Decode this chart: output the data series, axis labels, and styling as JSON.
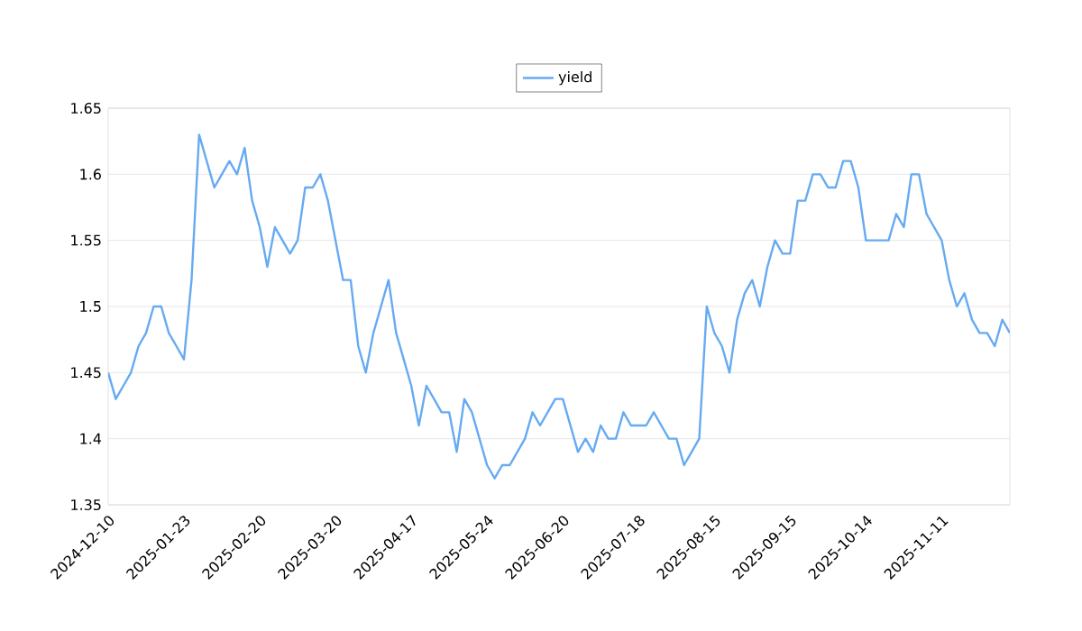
{
  "chart_data": {
    "type": "line",
    "categories": [
      "2024-12-10",
      null,
      null,
      null,
      null,
      null,
      null,
      null,
      null,
      null,
      "2025-01-23",
      null,
      null,
      null,
      null,
      null,
      null,
      null,
      null,
      null,
      "2025-02-20",
      null,
      null,
      null,
      null,
      null,
      null,
      null,
      null,
      null,
      "2025-03-20",
      null,
      null,
      null,
      null,
      null,
      null,
      null,
      null,
      null,
      "2025-04-17",
      null,
      null,
      null,
      null,
      null,
      null,
      null,
      null,
      null,
      "2025-05-24",
      null,
      null,
      null,
      null,
      null,
      null,
      null,
      null,
      null,
      "2025-06-20",
      null,
      null,
      null,
      null,
      null,
      null,
      null,
      null,
      null,
      "2025-07-18",
      null,
      null,
      null,
      null,
      null,
      null,
      null,
      null,
      null,
      "2025-08-15",
      null,
      null,
      null,
      null,
      null,
      null,
      null,
      null,
      null,
      "2025-09-15",
      null,
      null,
      null,
      null,
      null,
      null,
      null,
      null,
      null,
      "2025-10-14",
      null,
      null,
      null,
      null,
      null,
      null,
      null,
      null,
      null,
      "2025-11-11",
      null,
      null,
      null,
      null,
      null,
      null,
      null,
      null,
      null
    ],
    "series": [
      {
        "name": "yield",
        "color": "#66aaf2",
        "values": [
          1.45,
          1.43,
          1.44,
          1.45,
          1.47,
          1.48,
          1.5,
          1.5,
          1.48,
          1.47,
          1.46,
          1.52,
          1.63,
          1.61,
          1.59,
          1.6,
          1.61,
          1.6,
          1.62,
          1.58,
          1.56,
          1.53,
          1.56,
          1.55,
          1.54,
          1.55,
          1.59,
          1.59,
          1.6,
          1.58,
          1.55,
          1.52,
          1.52,
          1.47,
          1.45,
          1.48,
          1.5,
          1.52,
          1.48,
          1.46,
          1.44,
          1.41,
          1.44,
          1.43,
          1.42,
          1.42,
          1.39,
          1.43,
          1.42,
          1.4,
          1.38,
          1.37,
          1.38,
          1.38,
          1.39,
          1.4,
          1.42,
          1.41,
          1.42,
          1.43,
          1.43,
          1.41,
          1.39,
          1.4,
          1.39,
          1.41,
          1.4,
          1.4,
          1.42,
          1.41,
          1.41,
          1.41,
          1.42,
          1.41,
          1.4,
          1.4,
          1.38,
          1.39,
          1.4,
          1.5,
          1.48,
          1.47,
          1.45,
          1.49,
          1.51,
          1.52,
          1.5,
          1.53,
          1.55,
          1.54,
          1.54,
          1.58,
          1.58,
          1.6,
          1.6,
          1.59,
          1.59,
          1.61,
          1.61,
          1.59,
          1.55,
          1.55,
          1.55,
          1.55,
          1.57,
          1.56,
          1.6,
          1.6,
          1.57,
          1.56,
          1.55,
          1.52,
          1.5,
          1.51,
          1.49,
          1.48,
          1.48,
          1.47,
          1.49,
          1.48
        ]
      }
    ],
    "ylim": [
      1.35,
      1.65
    ],
    "yticks": [
      1.35,
      1.4,
      1.45,
      1.5,
      1.55,
      1.6,
      1.65
    ],
    "grid": "y",
    "legend": "top",
    "marker": "none",
    "line_style": "solid"
  }
}
